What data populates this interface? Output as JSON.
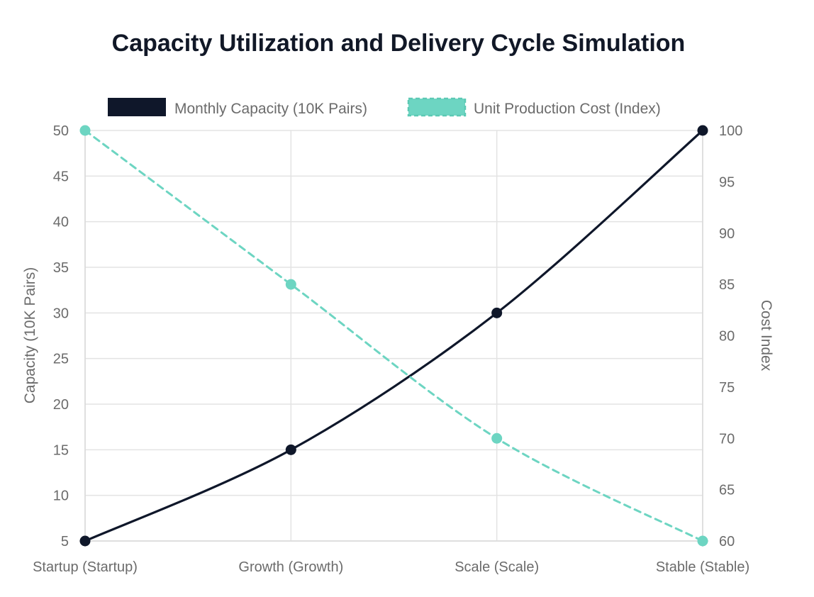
{
  "chart_data": {
    "type": "line",
    "title": "Capacity Utilization and Delivery Cycle Simulation",
    "categories": [
      "Startup (Startup)",
      "Growth (Growth)",
      "Scale (Scale)",
      "Stable (Stable)"
    ],
    "series": [
      {
        "name": "Monthly Capacity (10K Pairs)",
        "axis": "left",
        "values": [
          5,
          15,
          30,
          50
        ],
        "color": "#0f172a",
        "style": "solid"
      },
      {
        "name": "Unit Production Cost (Index)",
        "axis": "right",
        "values": [
          100,
          85,
          70,
          60
        ],
        "color": "#6dd5c2",
        "style": "dashed"
      }
    ],
    "y_left": {
      "label": "Capacity (10K Pairs)",
      "ylim": [
        5,
        50
      ],
      "ticks": [
        5,
        10,
        15,
        20,
        25,
        30,
        35,
        40,
        45,
        50
      ]
    },
    "y_right": {
      "label": "Cost Index",
      "ylim": [
        60,
        100
      ],
      "ticks": [
        60,
        65,
        70,
        75,
        80,
        85,
        90,
        95,
        100
      ]
    },
    "grid": true,
    "legend_position": "top"
  }
}
